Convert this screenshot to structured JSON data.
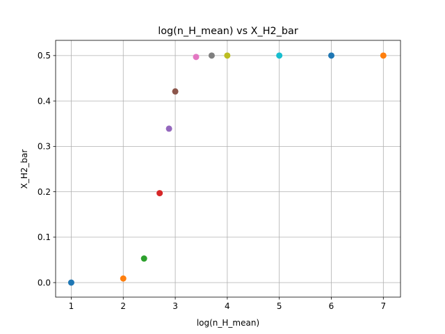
{
  "chart_data": {
    "type": "scatter",
    "title": "log(n_H_mean) vs X_H2_bar",
    "xlabel": "log(n_H_mean)",
    "ylabel": "X_H2_bar",
    "xlim": [
      0.7,
      7.33
    ],
    "ylim": [
      -0.032,
      0.5335
    ],
    "x_ticks": [
      1,
      2,
      3,
      4,
      5,
      6,
      7
    ],
    "x_tick_labels": [
      "1",
      "2",
      "3",
      "4",
      "5",
      "6",
      "7"
    ],
    "y_ticks": [
      0.0,
      0.1,
      0.2,
      0.3,
      0.4,
      0.5
    ],
    "y_tick_labels": [
      "0.0",
      "0.1",
      "0.2",
      "0.3",
      "0.4",
      "0.5"
    ],
    "grid": true,
    "points": [
      {
        "x": 1.0,
        "y": 0.0,
        "color": "#1f77b4"
      },
      {
        "x": 2.0,
        "y": 0.009,
        "color": "#ff7f0e"
      },
      {
        "x": 2.4,
        "y": 0.053,
        "color": "#2ca02c"
      },
      {
        "x": 2.7,
        "y": 0.197,
        "color": "#d62728"
      },
      {
        "x": 2.88,
        "y": 0.339,
        "color": "#9467bd"
      },
      {
        "x": 3.0,
        "y": 0.421,
        "color": "#8c564b"
      },
      {
        "x": 3.4,
        "y": 0.497,
        "color": "#e377c2"
      },
      {
        "x": 3.7,
        "y": 0.5,
        "color": "#7f7f7f"
      },
      {
        "x": 4.0,
        "y": 0.5,
        "color": "#bcbd22"
      },
      {
        "x": 5.0,
        "y": 0.5,
        "color": "#17becf"
      },
      {
        "x": 6.0,
        "y": 0.5,
        "color": "#1f77b4"
      },
      {
        "x": 7.0,
        "y": 0.5,
        "color": "#ff7f0e"
      }
    ]
  }
}
